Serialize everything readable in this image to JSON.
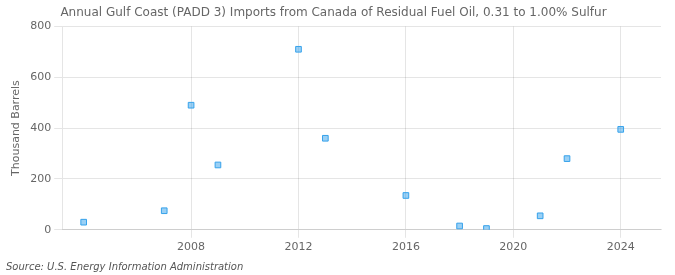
{
  "chart_data": {
    "type": "scatter",
    "title": "Annual Gulf Coast (PADD 3) Imports from Canada of Residual Fuel Oil, 0.31 to 1.00% Sulfur",
    "ylabel": "Thousand Barrels",
    "source": "Source: U.S. Energy Information Administration",
    "x": [
      2004,
      2007,
      2008,
      2009,
      2012,
      2013,
      2016,
      2018,
      2019,
      2021,
      2022,
      2024
    ],
    "values": [
      30,
      75,
      490,
      255,
      710,
      360,
      135,
      15,
      5,
      55,
      280,
      395
    ],
    "marker": "square",
    "xlim": [
      2003.2,
      2025.5
    ],
    "ylim": [
      0,
      800
    ],
    "xticks": [
      2008,
      2012,
      2016,
      2020,
      2024
    ],
    "yticks": [
      0,
      200,
      400,
      600,
      800
    ],
    "grid": true
  }
}
